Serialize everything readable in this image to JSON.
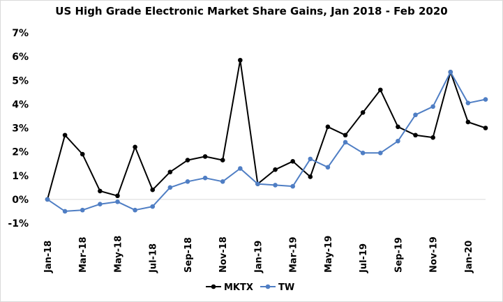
{
  "chart_data": {
    "type": "line",
    "title": "US High Grade Electronic Market Share Gains, Jan 2018 - Feb 2020",
    "xlabel": "",
    "ylabel": "",
    "ylim": [
      -1,
      7
    ],
    "y_tick_values": [
      -1,
      0,
      1,
      2,
      3,
      4,
      5,
      6,
      7
    ],
    "y_tick_labels": [
      "-1%",
      "0%",
      "1%",
      "2%",
      "3%",
      "4%",
      "5%",
      "6%",
      "7%"
    ],
    "x": [
      "Jan-18",
      "Feb-18",
      "Mar-18",
      "Apr-18",
      "May-18",
      "Jun-18",
      "Jul-18",
      "Aug-18",
      "Sep-18",
      "Oct-18",
      "Nov-18",
      "Dec-18",
      "Jan-19",
      "Feb-19",
      "Mar-19",
      "Apr-19",
      "May-19",
      "Jun-19",
      "Jul-19",
      "Aug-19",
      "Sep-19",
      "Oct-19",
      "Nov-19",
      "Dec-19",
      "Jan-20",
      "Feb-20"
    ],
    "x_tick_labels": [
      "Jan-18",
      "Mar-18",
      "May-18",
      "Jul-18",
      "Sep-18",
      "Nov-18",
      "Jan-19",
      "Mar-19",
      "May-19",
      "Jul-19",
      "Sep-19",
      "Nov-19",
      "Jan-20"
    ],
    "grid": false,
    "legend_position": "bottom",
    "series": [
      {
        "name": "MKTX",
        "color": "#000000",
        "values": [
          0.0,
          2.7,
          1.9,
          0.35,
          0.15,
          2.2,
          0.4,
          1.15,
          1.65,
          1.8,
          1.65,
          5.85,
          0.65,
          1.25,
          1.6,
          0.95,
          3.05,
          2.7,
          3.65,
          4.6,
          3.05,
          2.7,
          2.6,
          5.35,
          3.25,
          3.0
        ]
      },
      {
        "name": "TW",
        "color": "#4f7ec4",
        "values": [
          0.0,
          -0.5,
          -0.45,
          -0.2,
          -0.1,
          -0.45,
          -0.3,
          0.5,
          0.75,
          0.9,
          0.75,
          1.3,
          0.65,
          0.6,
          0.55,
          1.7,
          1.35,
          2.4,
          1.95,
          1.95,
          2.45,
          3.55,
          3.9,
          5.35,
          4.05,
          4.2
        ]
      }
    ]
  }
}
